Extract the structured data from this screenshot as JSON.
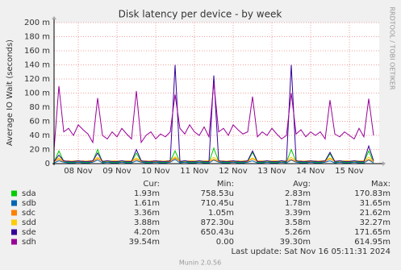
{
  "chart_data": {
    "type": "line",
    "title": "Disk latency per device - by week",
    "y_label": "Average IO Wait (seconds)",
    "side_label": "RRDTOOL / TOBI OETIKER",
    "categories": [
      null,
      null,
      null,
      null,
      null,
      "08 Nov",
      null,
      null,
      null,
      null,
      null,
      null,
      null,
      "09 Nov",
      null,
      null,
      null,
      null,
      null,
      null,
      null,
      "10 Nov",
      null,
      null,
      null,
      null,
      null,
      null,
      null,
      "11 Nov",
      null,
      null,
      null,
      null,
      null,
      null,
      null,
      "12 Nov",
      null,
      null,
      null,
      null,
      null,
      null,
      null,
      "13 Nov",
      null,
      null,
      null,
      null,
      null,
      null,
      null,
      "14 Nov",
      null,
      null,
      null,
      null,
      null,
      null,
      null,
      "15 Nov",
      null,
      null,
      null,
      null,
      null
    ],
    "ylim": [
      0,
      200
    ],
    "yticks": [
      0,
      {
        "value": 20,
        "label": "20 m"
      },
      {
        "value": 40,
        "label": "40 m"
      },
      {
        "value": 60,
        "label": "60 m"
      },
      {
        "value": 80,
        "label": "80 m"
      },
      {
        "value": 100,
        "label": "100 m"
      },
      {
        "value": 120,
        "label": "120 m"
      },
      {
        "value": 140,
        "label": "140 m"
      },
      {
        "value": 160,
        "label": "160 m"
      },
      {
        "value": 180,
        "label": "180 m"
      },
      {
        "value": 200,
        "label": "200 m"
      }
    ],
    "grid": true,
    "legend_columns": [
      "Cur:",
      "Min:",
      "Avg:",
      "Max:"
    ],
    "series": [
      {
        "name": "sda",
        "color": "#00cc00",
        "stats": [
          "1.93m",
          "758.53u",
          "2.83m",
          "170.83m"
        ],
        "values": [
          2,
          18,
          3,
          2,
          2,
          3,
          2,
          2,
          3,
          20,
          2,
          3,
          2,
          2,
          3,
          2,
          2,
          15,
          3,
          2,
          2,
          3,
          2,
          2,
          3,
          18,
          2,
          3,
          2,
          2,
          3,
          2,
          2,
          22,
          3,
          2,
          2,
          3,
          2,
          2,
          3,
          16,
          2,
          2,
          3,
          2,
          2,
          3,
          2,
          20,
          3,
          2,
          2,
          3,
          2,
          2,
          3,
          14,
          2,
          3,
          2,
          2,
          3,
          2,
          2,
          18,
          2
        ]
      },
      {
        "name": "sdb",
        "color": "#0066b3",
        "stats": [
          "1.61m",
          "710.45u",
          "1.78m",
          "31.65m"
        ],
        "values": [
          1,
          4,
          2,
          1,
          1,
          2,
          1,
          1,
          2,
          5,
          1,
          2,
          1,
          1,
          2,
          1,
          1,
          4,
          2,
          1,
          1,
          2,
          1,
          1,
          2,
          6,
          1,
          2,
          1,
          1,
          2,
          1,
          1,
          5,
          2,
          1,
          1,
          2,
          1,
          1,
          2,
          4,
          1,
          1,
          2,
          1,
          1,
          2,
          1,
          5,
          2,
          1,
          1,
          2,
          1,
          1,
          2,
          4,
          1,
          2,
          1,
          1,
          2,
          1,
          1,
          5,
          1
        ]
      },
      {
        "name": "sdc",
        "color": "#ff8000",
        "stats": [
          "3.36m",
          "1.05m",
          "3.39m",
          "21.62m"
        ],
        "values": [
          3,
          6,
          3,
          4,
          3,
          3,
          4,
          3,
          3,
          7,
          3,
          4,
          3,
          3,
          4,
          3,
          3,
          6,
          3,
          4,
          3,
          3,
          4,
          3,
          3,
          8,
          3,
          4,
          3,
          3,
          4,
          3,
          3,
          6,
          3,
          4,
          3,
          3,
          4,
          3,
          3,
          7,
          3,
          3,
          4,
          3,
          3,
          4,
          3,
          6,
          3,
          4,
          3,
          3,
          4,
          3,
          3,
          7,
          3,
          4,
          3,
          3,
          4,
          3,
          3,
          6,
          3
        ]
      },
      {
        "name": "sdd",
        "color": "#ffcc00",
        "stats": [
          "3.88m",
          "872.30u",
          "3.58m",
          "32.27m"
        ],
        "values": [
          4,
          8,
          4,
          3,
          4,
          4,
          3,
          4,
          4,
          9,
          4,
          3,
          4,
          4,
          3,
          4,
          4,
          8,
          4,
          3,
          4,
          4,
          3,
          4,
          4,
          10,
          4,
          3,
          4,
          4,
          3,
          4,
          4,
          9,
          4,
          3,
          4,
          4,
          3,
          4,
          4,
          8,
          4,
          4,
          3,
          4,
          4,
          3,
          4,
          9,
          4,
          3,
          4,
          4,
          3,
          4,
          4,
          8,
          4,
          3,
          4,
          4,
          3,
          4,
          4,
          9,
          4
        ]
      },
      {
        "name": "sde",
        "color": "#330099",
        "stats": [
          "4.20m",
          "650.43u",
          "5.26m",
          "171.65m"
        ],
        "values": [
          3,
          12,
          4,
          3,
          3,
          4,
          3,
          3,
          4,
          15,
          3,
          4,
          3,
          3,
          4,
          3,
          3,
          20,
          4,
          3,
          3,
          4,
          3,
          3,
          4,
          140,
          3,
          4,
          3,
          3,
          4,
          3,
          3,
          125,
          4,
          3,
          3,
          4,
          3,
          3,
          4,
          18,
          3,
          3,
          4,
          3,
          3,
          4,
          3,
          140,
          4,
          3,
          3,
          4,
          3,
          3,
          4,
          16,
          3,
          4,
          3,
          3,
          4,
          3,
          3,
          25,
          4
        ]
      },
      {
        "name": "sdh",
        "color": "#990099",
        "stats": [
          "39.54m",
          "0.00",
          "39.30m",
          "614.95m"
        ],
        "values": [
          20,
          110,
          45,
          50,
          40,
          55,
          48,
          42,
          30,
          93,
          40,
          35,
          45,
          38,
          50,
          42,
          35,
          103,
          30,
          40,
          45,
          35,
          42,
          38,
          45,
          98,
          50,
          42,
          55,
          45,
          40,
          52,
          38,
          115,
          45,
          50,
          40,
          55,
          48,
          42,
          45,
          95,
          38,
          45,
          40,
          50,
          42,
          35,
          40,
          100,
          42,
          48,
          38,
          45,
          40,
          45,
          35,
          90,
          42,
          38,
          45,
          40,
          35,
          50,
          38,
          92,
          40
        ]
      }
    ],
    "last_update": "Last update: Sat Nov 16 05:11:31 2024",
    "footer": "Munin 2.0.56"
  }
}
